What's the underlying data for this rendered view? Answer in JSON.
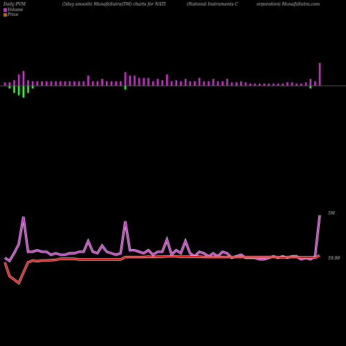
{
  "header": {
    "left": "Daily PVM",
    "mid1": "(5day smooth) MunafaSutra(TM) charts for NATI",
    "mid2": "(National Instruments C",
    "right": "orporation) MunafaSutra.com"
  },
  "legend": {
    "volume_label": "Volume",
    "price_label": "Price",
    "volume_color": "#cc33cc",
    "price_color": "#cc6600"
  },
  "chart_data": {
    "type": "bar",
    "title": "Daily PVM (5day smooth) MunafaSutra(TM) charts for NATI",
    "x": [
      1,
      2,
      3,
      4,
      5,
      6,
      7,
      8,
      9,
      10,
      11,
      12,
      13,
      14,
      15,
      16,
      17,
      18,
      19,
      20,
      21,
      22,
      23,
      24,
      25,
      26,
      27,
      28,
      29,
      30,
      31,
      32,
      33,
      34,
      35,
      36,
      37,
      38,
      39,
      40,
      41,
      42,
      43,
      44,
      45,
      46,
      47,
      48,
      49,
      50,
      51,
      52,
      53,
      54,
      55,
      56,
      57,
      58,
      59,
      60,
      61,
      62,
      63,
      64,
      65,
      66,
      67,
      68,
      69
    ],
    "series": [
      {
        "name": "Volume",
        "values": [
          2.2,
          2.0,
          2.5,
          3.1,
          4.9,
          2.6,
          2.6,
          2.7,
          2.6,
          2.6,
          2.4,
          2.5,
          2.4,
          2.4,
          2.5,
          2.5,
          2.6,
          2.6,
          3.3,
          2.6,
          2.5,
          3.0,
          2.6,
          2.5,
          2.4,
          2.5,
          4.6,
          2.7,
          2.7,
          2.6,
          2.5,
          2.7,
          2.4,
          2.6,
          2.6,
          3.4,
          2.4,
          2.7,
          2.5,
          3.3,
          2.5,
          2.3,
          2.6,
          2.5,
          2.3,
          2.5,
          2.3,
          2.6,
          2.5,
          2.2,
          2.3,
          2.4,
          2.2,
          2.2,
          2.2,
          2.1,
          2.1,
          2.2,
          2.3,
          2.2,
          2.3,
          2.2,
          2.3,
          2.3,
          2.1,
          2.2,
          2.1,
          2.3,
          5.0
        ]
      },
      {
        "name": "Price",
        "values": [
          59.9,
          59.5,
          59.4,
          59.3,
          59.6,
          59.9,
          59.95,
          59.93,
          59.95,
          59.95,
          59.96,
          59.97,
          60.0,
          60.0,
          60.0,
          60.0,
          59.98,
          59.98,
          59.98,
          59.98,
          59.98,
          59.98,
          59.98,
          59.98,
          59.98,
          59.98,
          60.05,
          60.05,
          60.05,
          60.05,
          60.05,
          60.06,
          60.05,
          60.06,
          60.06,
          60.07,
          60.07,
          60.07,
          60.06,
          60.06,
          60.06,
          60.06,
          60.06,
          60.05,
          60.05,
          60.05,
          60.05,
          60.05,
          60.05,
          60.05,
          60.05,
          60.05,
          60.05,
          60.05,
          60.05,
          60.05,
          60.05,
          60.05,
          60.05,
          60.05,
          60.04,
          60.05,
          60.05,
          60.05,
          60.04,
          60.04,
          60.04,
          60.03,
          60.1
        ]
      }
    ],
    "pvm_bars": [
      {
        "up": 3,
        "down": 0
      },
      {
        "up": 3,
        "down": 2
      },
      {
        "up": 5,
        "down": 6
      },
      {
        "up": 10,
        "down": 8
      },
      {
        "up": 13,
        "down": 10
      },
      {
        "up": 5,
        "down": 6
      },
      {
        "up": 4,
        "down": 2
      },
      {
        "up": 4,
        "down": 0
      },
      {
        "up": 4,
        "down": 0
      },
      {
        "up": 4,
        "down": 0
      },
      {
        "up": 4,
        "down": 0
      },
      {
        "up": 4,
        "down": 0
      },
      {
        "up": 4,
        "down": 0
      },
      {
        "up": 4,
        "down": 0
      },
      {
        "up": 4,
        "down": 0
      },
      {
        "up": 4,
        "down": 0
      },
      {
        "up": 4,
        "down": 0
      },
      {
        "up": 4,
        "down": 0
      },
      {
        "up": 9,
        "down": 0
      },
      {
        "up": 4,
        "down": 0
      },
      {
        "up": 4,
        "down": 0
      },
      {
        "up": 6,
        "down": 0
      },
      {
        "up": 4,
        "down": 0
      },
      {
        "up": 4,
        "down": 0
      },
      {
        "up": 4,
        "down": 0
      },
      {
        "up": 4,
        "down": 0
      },
      {
        "up": 12,
        "down": 3
      },
      {
        "up": 9,
        "down": 0
      },
      {
        "up": 9,
        "down": 0
      },
      {
        "up": 7,
        "down": 0
      },
      {
        "up": 7,
        "down": 0
      },
      {
        "up": 7,
        "down": 0
      },
      {
        "up": 4,
        "down": 0
      },
      {
        "up": 6,
        "down": 0
      },
      {
        "up": 5,
        "down": 0
      },
      {
        "up": 10,
        "down": 0
      },
      {
        "up": 4,
        "down": 0
      },
      {
        "up": 5,
        "down": 0
      },
      {
        "up": 4,
        "down": 0
      },
      {
        "up": 6,
        "down": 0
      },
      {
        "up": 4,
        "down": 0
      },
      {
        "up": 4,
        "down": 0
      },
      {
        "up": 7,
        "down": 0
      },
      {
        "up": 4,
        "down": 0
      },
      {
        "up": 4,
        "down": 0
      },
      {
        "up": 6,
        "down": 0
      },
      {
        "up": 4,
        "down": 0
      },
      {
        "up": 4,
        "down": 0
      },
      {
        "up": 6,
        "down": 0
      },
      {
        "up": 3,
        "down": 0
      },
      {
        "up": 3,
        "down": 0
      },
      {
        "up": 4,
        "down": 0
      },
      {
        "up": 3,
        "down": 0
      },
      {
        "up": 2,
        "down": 0
      },
      {
        "up": 2,
        "down": 0
      },
      {
        "up": 2,
        "down": 0
      },
      {
        "up": 2,
        "down": 0
      },
      {
        "up": 2,
        "down": 0
      },
      {
        "up": 2,
        "down": 0
      },
      {
        "up": 2,
        "down": 0
      },
      {
        "up": 2,
        "down": 0
      },
      {
        "up": 3,
        "down": 0
      },
      {
        "up": 3,
        "down": 0
      },
      {
        "up": 2,
        "down": 0
      },
      {
        "up": 2,
        "down": 0
      },
      {
        "up": 3,
        "down": 0
      },
      {
        "up": 6,
        "down": 2
      },
      {
        "up": 4,
        "down": 0
      },
      {
        "up": 20,
        "down": 0
      }
    ],
    "volume_axis_label": "5M",
    "price_axis_label": "59.98",
    "grid": false
  }
}
